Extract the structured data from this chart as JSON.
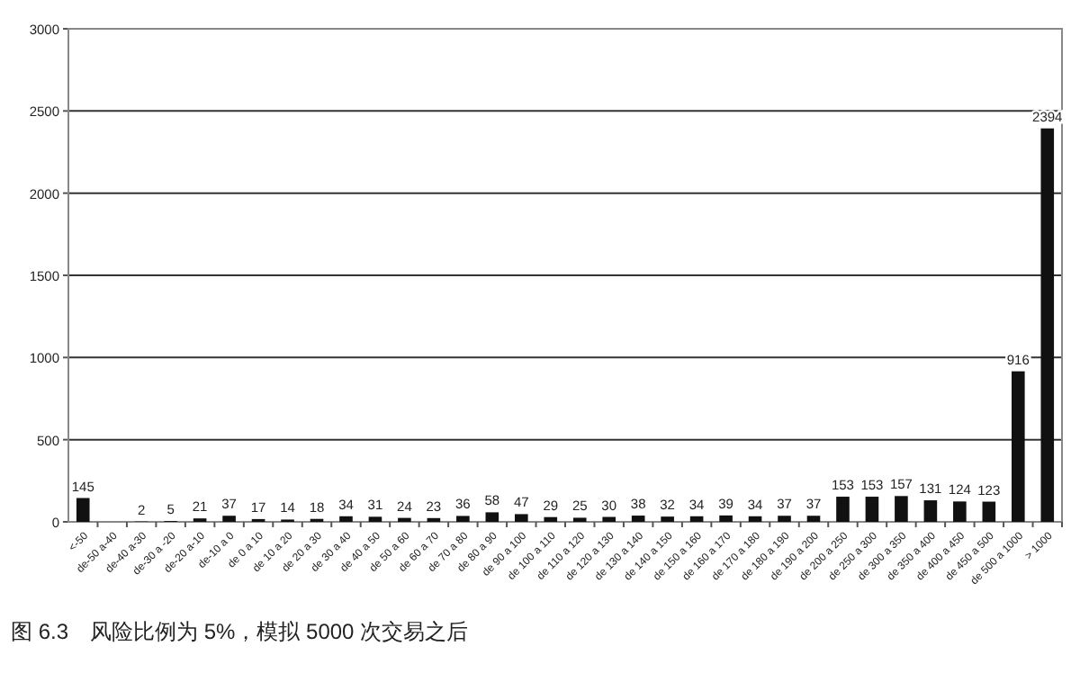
{
  "chart_data": {
    "type": "bar",
    "categories": [
      "<-50",
      "de-50 a-40",
      "de-40 a-30",
      "de-30 a -20",
      "de-20 a-10",
      "de-10 a 0",
      "de 0 a 10",
      "de 10 a 20",
      "de 20 a 30",
      "de 30 a 40",
      "de 40 a 50",
      "de 50 a 60",
      "de 60 a 70",
      "de 70 a 80",
      "de 80 a 90",
      "de 90 a 100",
      "de 100 a 110",
      "de 110 a 120",
      "de 120 a 130",
      "de 130 a 140",
      "de 140 a 150",
      "de 150 a 160",
      "de 160 a 170",
      "de 170 a 180",
      "de 180 a 190",
      "de 190 a 200",
      "de 200 a 250",
      "de 250 a 300",
      "de 300 a 350",
      "de 350 a 400",
      "de 400 a 450",
      "de 450 a 500",
      "de 500 a 1000",
      "> 1000"
    ],
    "values": [
      145,
      0,
      2,
      5,
      21,
      37,
      17,
      14,
      18,
      34,
      31,
      24,
      23,
      36,
      58,
      47,
      29,
      25,
      30,
      38,
      32,
      34,
      39,
      34,
      37,
      37,
      153,
      153,
      157,
      131,
      124,
      123,
      916,
      2394
    ],
    "value_labels": [
      "145",
      null,
      "2",
      "5",
      "21",
      "37",
      "17",
      "14",
      "18",
      "34",
      "31",
      "24",
      "23",
      "36",
      "58",
      "47",
      "29",
      "25",
      "30",
      "38",
      "32",
      "34",
      "39",
      "34",
      "37",
      "37",
      "153",
      "153",
      "157",
      "131",
      "124",
      "123",
      "916",
      "2394"
    ],
    "color": "#111111",
    "ylim": [
      0,
      3000
    ],
    "yticks": [
      0,
      500,
      1000,
      1500,
      2000,
      2500,
      3000
    ],
    "grid": "y",
    "annotations": [
      "图 6.3　风险比例为 5%，模拟 5000 次交易之后"
    ]
  }
}
